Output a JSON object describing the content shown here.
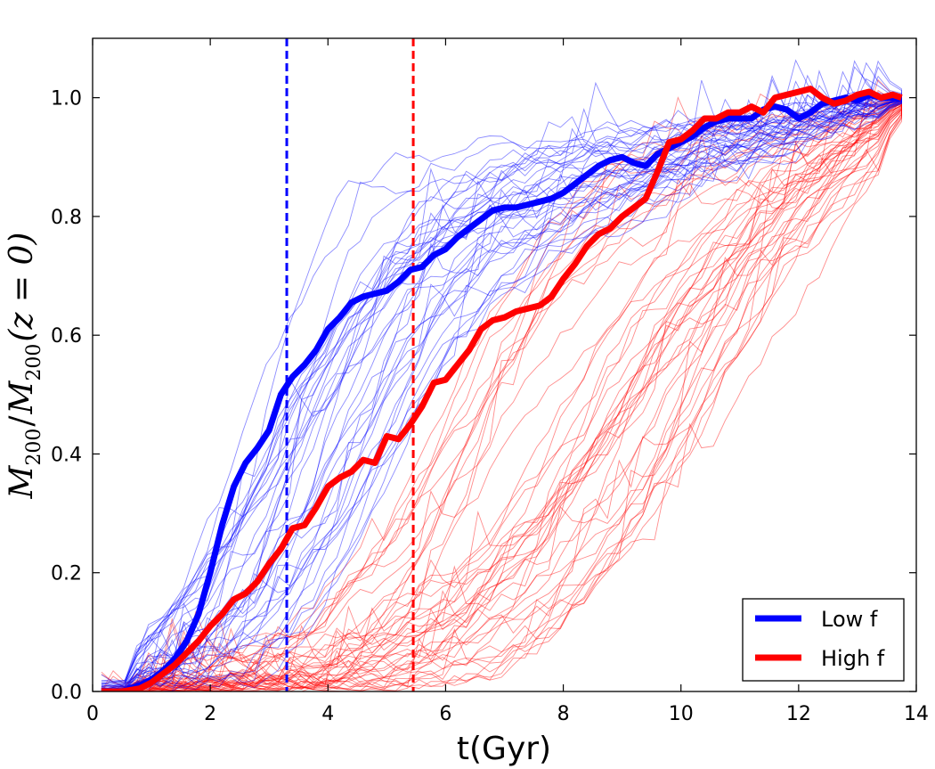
{
  "chart_data": {
    "type": "line",
    "title": "",
    "xlabel": "t(Gyr)",
    "ylabel": "M200 / M200 (z = 0)",
    "ylabel_parts": {
      "m1": "M",
      "s1": "200",
      "slash": "/",
      "m2": "M",
      "s2": "200",
      "rest": "(z = 0)"
    },
    "xlim": [
      0,
      14
    ],
    "ylim": [
      0,
      1.1
    ],
    "xticks": [
      0,
      2,
      4,
      6,
      8,
      10,
      12,
      14
    ],
    "xtick_labels": [
      "0",
      "2",
      "4",
      "6",
      "8",
      "10",
      "12",
      "14"
    ],
    "yticks": [
      0.0,
      0.2,
      0.4,
      0.6,
      0.8,
      1.0
    ],
    "ytick_labels": [
      "0.0",
      "0.2",
      "0.4",
      "0.6",
      "0.8",
      "1.0"
    ],
    "legend_position": "lower-right",
    "series": [
      {
        "name": "Low f",
        "color": "#0000ff",
        "x": [
          0.15,
          0.5,
          0.8,
          1.0,
          1.2,
          1.4,
          1.6,
          1.8,
          2.0,
          2.2,
          2.4,
          2.6,
          2.8,
          3.0,
          3.2,
          3.4,
          3.6,
          3.8,
          4.0,
          4.2,
          4.4,
          4.6,
          4.8,
          5.0,
          5.2,
          5.4,
          5.6,
          5.8,
          6.0,
          6.2,
          6.4,
          6.6,
          6.8,
          7.0,
          7.2,
          7.4,
          7.6,
          7.8,
          8.0,
          8.2,
          8.4,
          8.6,
          8.8,
          9.0,
          9.2,
          9.4,
          9.6,
          9.8,
          10.0,
          10.2,
          10.4,
          10.6,
          10.8,
          11.0,
          11.2,
          11.4,
          11.6,
          11.8,
          12.0,
          12.2,
          12.4,
          12.6,
          12.8,
          13.0,
          13.2,
          13.4,
          13.6,
          13.75
        ],
        "y": [
          0.0,
          0.0,
          0.01,
          0.02,
          0.035,
          0.055,
          0.085,
          0.13,
          0.2,
          0.28,
          0.345,
          0.385,
          0.41,
          0.44,
          0.5,
          0.53,
          0.55,
          0.575,
          0.61,
          0.63,
          0.655,
          0.665,
          0.67,
          0.675,
          0.69,
          0.71,
          0.715,
          0.735,
          0.745,
          0.765,
          0.78,
          0.795,
          0.81,
          0.815,
          0.815,
          0.82,
          0.825,
          0.83,
          0.84,
          0.855,
          0.87,
          0.885,
          0.895,
          0.9,
          0.89,
          0.885,
          0.905,
          0.915,
          0.925,
          0.935,
          0.95,
          0.96,
          0.965,
          0.965,
          0.965,
          0.98,
          0.985,
          0.98,
          0.965,
          0.975,
          0.99,
          0.995,
          1.0,
          0.995,
          1.005,
          1.0,
          1.0,
          1.0
        ]
      },
      {
        "name": "High f",
        "color": "#ff0000",
        "x": [
          0.15,
          0.5,
          0.8,
          1.0,
          1.2,
          1.4,
          1.6,
          1.8,
          2.0,
          2.2,
          2.4,
          2.6,
          2.8,
          3.0,
          3.2,
          3.4,
          3.6,
          3.8,
          4.0,
          4.2,
          4.4,
          4.6,
          4.8,
          5.0,
          5.2,
          5.4,
          5.6,
          5.8,
          6.0,
          6.2,
          6.4,
          6.6,
          6.8,
          7.0,
          7.2,
          7.4,
          7.6,
          7.8,
          8.0,
          8.2,
          8.4,
          8.6,
          8.8,
          9.0,
          9.2,
          9.4,
          9.6,
          9.8,
          10.0,
          10.2,
          10.4,
          10.6,
          10.8,
          11.0,
          11.2,
          11.4,
          11.6,
          11.8,
          12.0,
          12.2,
          12.4,
          12.6,
          12.8,
          13.0,
          13.2,
          13.4,
          13.6,
          13.75
        ],
        "y": [
          0.0,
          0.0,
          0.005,
          0.015,
          0.03,
          0.045,
          0.065,
          0.085,
          0.11,
          0.13,
          0.155,
          0.165,
          0.185,
          0.215,
          0.24,
          0.275,
          0.28,
          0.31,
          0.345,
          0.36,
          0.37,
          0.39,
          0.385,
          0.43,
          0.425,
          0.45,
          0.48,
          0.52,
          0.525,
          0.55,
          0.575,
          0.61,
          0.625,
          0.63,
          0.64,
          0.645,
          0.65,
          0.665,
          0.695,
          0.72,
          0.75,
          0.77,
          0.78,
          0.8,
          0.815,
          0.83,
          0.875,
          0.925,
          0.93,
          0.945,
          0.965,
          0.965,
          0.975,
          0.975,
          0.985,
          0.975,
          1.0,
          1.005,
          1.01,
          1.015,
          1.0,
          0.99,
          0.995,
          1.005,
          1.01,
          1.0,
          1.005,
          1.0
        ]
      }
    ],
    "vertical_lines": [
      {
        "name": "Low f median formation time",
        "x": 3.3,
        "color": "#0000ff"
      },
      {
        "name": "High f median formation time",
        "x": 5.45,
        "color": "#ff0000"
      }
    ],
    "background_tracks": {
      "description": "thin individual halo growth tracks",
      "low_f_count": 38,
      "high_f_count": 46,
      "low_f_color": "#0000ff",
      "high_f_color": "#ff0000"
    }
  }
}
